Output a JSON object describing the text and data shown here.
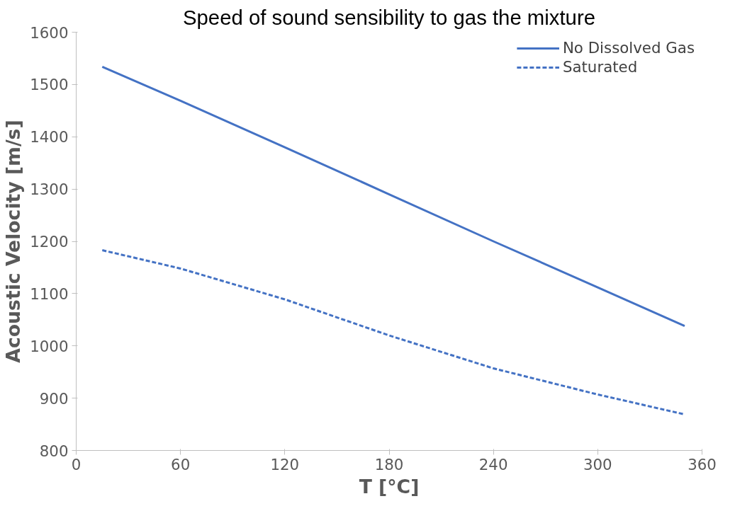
{
  "chart_data": {
    "type": "line",
    "title": "Speed of sound sensibility to gas the mixture",
    "xlabel": "T [°C]",
    "ylabel": "Acoustic Velocity [m/s]",
    "xlim": [
      0,
      360
    ],
    "xticks": [
      0,
      60,
      120,
      180,
      240,
      300,
      360
    ],
    "ylim": [
      800,
      1600
    ],
    "yticks": [
      800,
      900,
      1000,
      1100,
      1200,
      1300,
      1400,
      1500,
      1600
    ],
    "grid": false,
    "legend": "top right",
    "marker": "none",
    "series": [
      {
        "name": "No Dissolved Gas",
        "color": "#4472c4",
        "line_style": "solid",
        "x": [
          15,
          60,
          120,
          180,
          240,
          300,
          350
        ],
        "values": [
          1534,
          1469,
          1380,
          1290,
          1200,
          1112,
          1038
        ]
      },
      {
        "name": "Saturated",
        "color": "#4472c4",
        "line_style": "dashed",
        "x": [
          15,
          60,
          120,
          180,
          240,
          300,
          350
        ],
        "values": [
          1183,
          1148,
          1089,
          1020,
          957,
          907,
          869
        ]
      }
    ]
  }
}
